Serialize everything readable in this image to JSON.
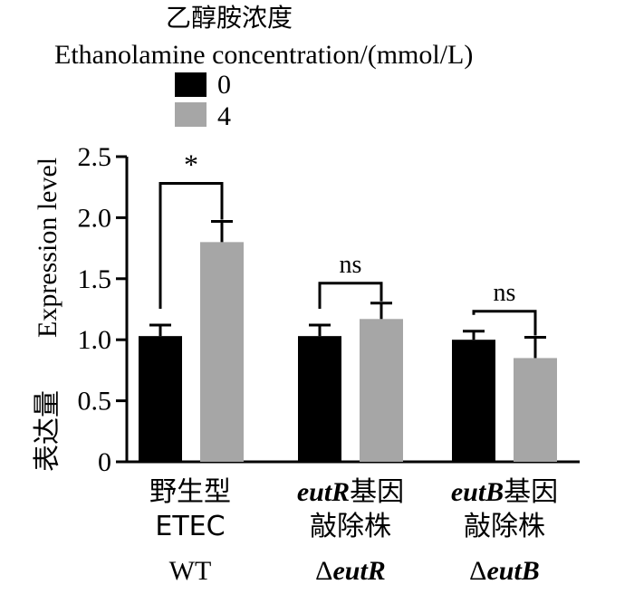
{
  "legend": {
    "title_cn": "乙醇胺浓度",
    "title_en": "Ethanolamine concentration/(mmol/L)",
    "entries": [
      {
        "label": "0",
        "color": "#000000"
      },
      {
        "label": "4",
        "color": "#a6a6a6"
      }
    ]
  },
  "chart_data": {
    "type": "bar",
    "ylabel_cn": "表达量",
    "ylabel_en": "Expression level",
    "ylim": [
      0,
      2.5
    ],
    "yticks": [
      "0",
      "0.5",
      "1.0",
      "1.5",
      "2.0",
      "2.5"
    ],
    "categories": [
      {
        "cn_prefix": "",
        "cn_suffix": "野生型",
        "line2": "ETEC",
        "en_prefix": "",
        "en_italic": "",
        "en_plain": "WT"
      },
      {
        "cn_prefix": "eutR",
        "cn_suffix": "基因",
        "line2": "敲除株",
        "en_prefix": "Δ",
        "en_italic": "eutR",
        "en_plain": ""
      },
      {
        "cn_prefix": "eutB",
        "cn_suffix": "基因",
        "line2": "敲除株",
        "en_prefix": "Δ",
        "en_italic": "eutB",
        "en_plain": ""
      }
    ],
    "series": [
      {
        "name": "0",
        "color": "#000000",
        "values": [
          1.03,
          1.03,
          1.0
        ],
        "errors": [
          0.09,
          0.09,
          0.07
        ]
      },
      {
        "name": "4",
        "color": "#a6a6a6",
        "values": [
          1.8,
          1.17,
          0.85
        ],
        "errors": [
          0.17,
          0.13,
          0.17
        ]
      }
    ],
    "significance": [
      "*",
      "ns",
      "ns"
    ]
  }
}
